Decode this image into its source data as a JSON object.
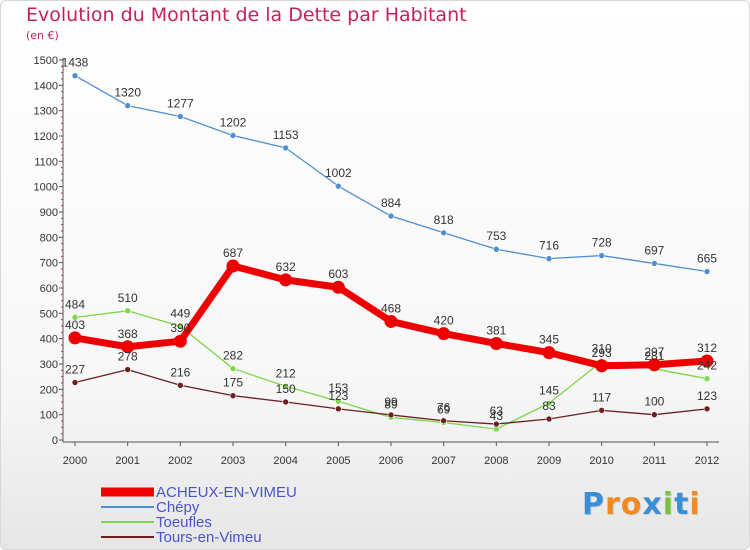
{
  "title": "Evolution du Montant de la Dette par Habitant",
  "subtitle": "(en €)",
  "logo": {
    "text": "Proxiti",
    "letter_colors": [
      "#3a8fd4",
      "#f08a1e",
      "#f08a1e",
      "#3a8fd4",
      "#79c141",
      "#3a8fd4",
      "#f08a1e"
    ]
  },
  "chart_data": {
    "type": "line",
    "title": "Evolution du Montant de la Dette par Habitant",
    "ylabel": "(en €)",
    "xlabel": "",
    "x": [
      "2000",
      "2001",
      "2002",
      "2003",
      "2004",
      "2005",
      "2006",
      "2007",
      "2008",
      "2009",
      "2010",
      "2011",
      "2012"
    ],
    "ylim": [
      0,
      1500
    ],
    "yticks": [
      0,
      100,
      200,
      300,
      400,
      500,
      600,
      700,
      800,
      900,
      1000,
      1100,
      1200,
      1300,
      1400,
      1500
    ],
    "grid": false,
    "legend_position": "bottom-left",
    "series": [
      {
        "name": "ACHEUX-EN-VIMEU",
        "color": "#ee0000",
        "values": [
          403,
          368,
          390,
          687,
          632,
          603,
          468,
          420,
          381,
          345,
          293,
          297,
          312
        ]
      },
      {
        "name": "Chépy",
        "color": "#4f8fcf",
        "values": [
          1438,
          1320,
          1277,
          1202,
          1153,
          1002,
          884,
          818,
          753,
          716,
          728,
          697,
          665
        ]
      },
      {
        "name": "Toeufles",
        "color": "#7fd64a",
        "values": [
          484,
          510,
          449,
          282,
          212,
          153,
          89,
          69,
          43,
          145,
          310,
          281,
          242
        ]
      },
      {
        "name": "Tours-en-Vimeu",
        "color": "#6b1f1f",
        "values": [
          227,
          278,
          216,
          175,
          150,
          123,
          99,
          76,
          63,
          83,
          117,
          100,
          123
        ]
      }
    ],
    "data_labels": [
      [
        "403",
        "368",
        "390",
        "687",
        "632",
        "603",
        "468",
        "420",
        "381",
        "345",
        "293",
        "297",
        "312"
      ],
      [
        "1438",
        "1320",
        "1277",
        "1202",
        "1153",
        "1002",
        "884",
        "818",
        "753",
        "716",
        "728",
        "697",
        "665"
      ],
      [
        "484",
        "510",
        "449",
        "282",
        "212",
        "153",
        "89",
        "69",
        "43",
        "145",
        "310",
        "281",
        "242"
      ],
      [
        "227",
        "278",
        "216",
        "175",
        "150",
        "123",
        "99",
        "76",
        "63",
        "83",
        "117",
        "100",
        "123"
      ]
    ]
  }
}
